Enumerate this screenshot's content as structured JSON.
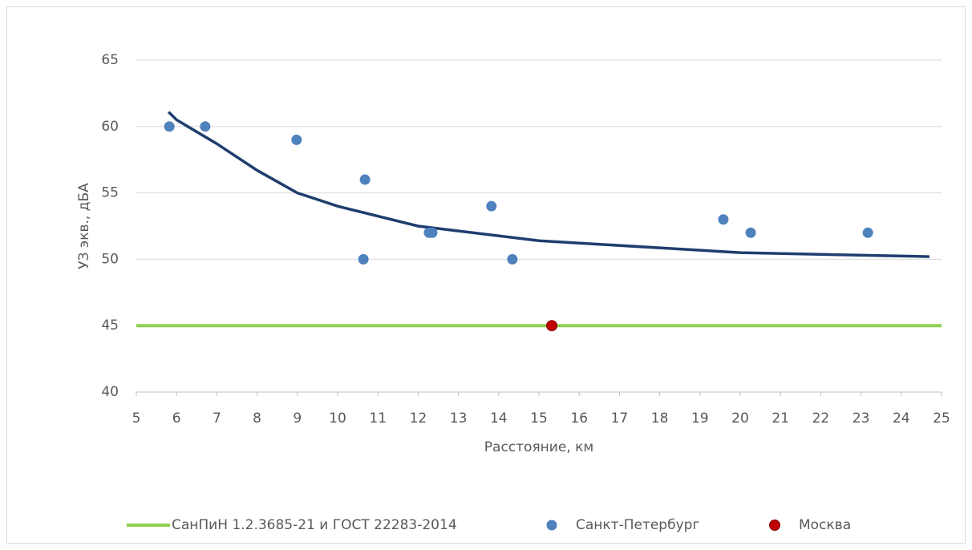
{
  "chart_data": {
    "type": "scatter",
    "xlabel": "Расстояние, км",
    "ylabel": "УЗ экв., дБА",
    "xlim": [
      5,
      25
    ],
    "xticks": [
      5,
      6,
      7,
      8,
      9,
      10,
      11,
      12,
      13,
      14,
      15,
      16,
      17,
      18,
      19,
      20,
      21,
      22,
      23,
      24,
      25
    ],
    "ylim": [
      40,
      65
    ],
    "yticks": [
      40,
      45,
      50,
      55,
      60,
      65
    ],
    "grid": true,
    "legend": "bottom",
    "series": [
      {
        "name": "СанПиН 1.2.3685-21 и ГОСТ 22283-2014",
        "color": "#92d050",
        "kind": "line",
        "x": [
          5,
          25
        ],
        "values": [
          45,
          45
        ]
      },
      {
        "name": "Санкт-Петербург",
        "color": "#4f81bd",
        "kind": "markers",
        "x": [
          5.82,
          6.71,
          8.98,
          10.68,
          10.64,
          12.27,
          12.35,
          13.82,
          14.34,
          19.58,
          20.26,
          23.17
        ],
        "values": [
          60,
          60,
          59,
          56,
          50,
          52,
          52,
          54,
          50,
          53,
          52,
          52
        ]
      },
      {
        "name": "Москва",
        "color": "#c00000",
        "kind": "markers",
        "x": [
          15.32
        ],
        "values": [
          45
        ]
      }
    ],
    "trendline": {
      "color": "#1f3e6e",
      "x": [
        5.8,
        6,
        7,
        8,
        9,
        10,
        12,
        15,
        20,
        24.7
      ],
      "values": [
        61.1,
        60.5,
        58.7,
        56.7,
        55.0,
        54.0,
        52.5,
        51.4,
        50.5,
        50.2
      ]
    }
  }
}
